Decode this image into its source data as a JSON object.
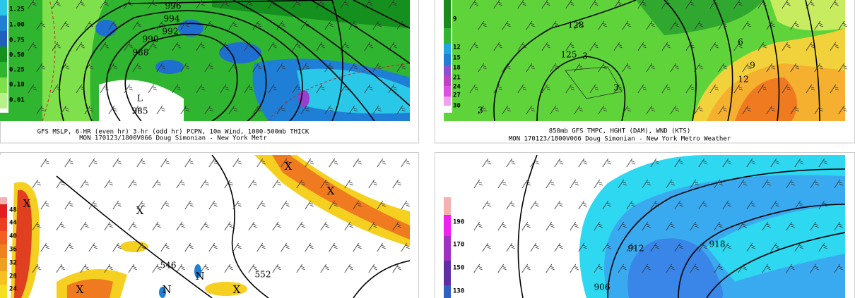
{
  "panels": [
    {
      "caption": [
        "GFS MSLP, 6-HR (even hr) 3-hr (odd hr) PCPN, 10m Wind, 1000-500mb THICK",
        "MON 170123/1800V066 Doug Simonian - New York Metr"
      ],
      "scale": [
        "1.25",
        "1.00",
        "0.75",
        "0.50",
        "0.25",
        "0.10",
        "0.01"
      ],
      "labels": [
        "996",
        "994",
        "992",
        "990",
        "988",
        "L",
        "985"
      ]
    },
    {
      "caption": [
        "850mb GFS TMPC, HGHT (DAM), WND (KTS)",
        "MON 170123/1800V066 Doug Simonian - New York Metro Weather"
      ],
      "scale": [
        "9",
        "12",
        "15",
        "18",
        "21",
        "24",
        "27",
        "30"
      ],
      "labels": [
        "128",
        "125",
        "3",
        "3",
        "3",
        "6",
        "9",
        "12"
      ]
    },
    {
      "scale": [
        "48",
        "44",
        "40",
        "36",
        "32",
        "28",
        "24"
      ],
      "labels": [
        "546",
        "552",
        "X",
        "X",
        "X",
        "X",
        "X",
        "X",
        "N",
        "N"
      ]
    },
    {
      "scale": [
        "190",
        "170",
        "150",
        "130"
      ],
      "labels": [
        "912",
        "918",
        "906"
      ]
    }
  ]
}
